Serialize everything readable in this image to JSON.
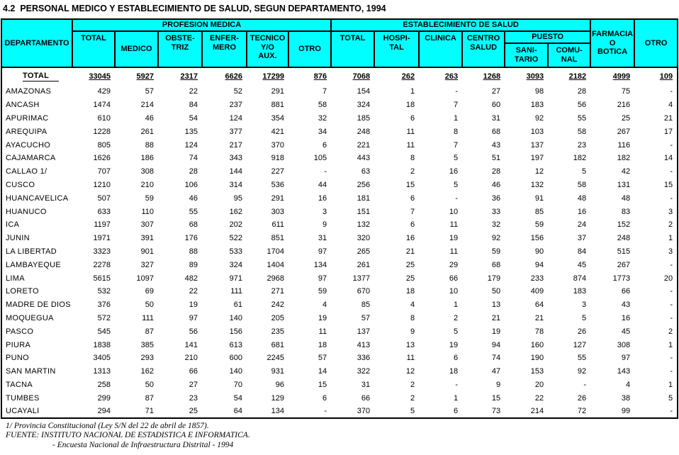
{
  "title": "4.2  PERSONAL MEDICO Y ESTABLECIMIENTO DE SALUD, SEGUN DEPARTAMENTO, 1994",
  "colors": {
    "header_bg": "#00ffff",
    "border": "#000000",
    "text": "#000000",
    "page_bg": "#ffffff"
  },
  "header": {
    "departamento": "DEPARTAMENTO",
    "groups": {
      "profesion": "PROFESION MEDICA",
      "establecimiento": "ESTABLECIMIENTO DE SALUD",
      "puesto": "PUESTO"
    },
    "prof_cols": [
      "TOTAL",
      "MEDICO",
      "OBSTE-\nTRIZ",
      "ENFER-\nMERO",
      "TECNICO\nY/O\nAUX.",
      "OTRO"
    ],
    "estab_cols": [
      "TOTAL",
      "HOSPI-\nTAL",
      "CLINICA",
      "CENTRO\nSALUD"
    ],
    "puesto_cols": [
      "SANI-\nTARIO",
      "COMU-\nNAL"
    ],
    "farmacia": "FARMACIA\nO\nBOTICA",
    "otro": "OTRO"
  },
  "table": {
    "total_row": {
      "label": "TOTAL",
      "values": [
        "33045",
        "5927",
        "2317",
        "6626",
        "17299",
        "876",
        "7068",
        "262",
        "263",
        "1268",
        "3093",
        "2182",
        "4999",
        "109"
      ]
    },
    "rows": [
      {
        "label": "AMAZONAS",
        "values": [
          "429",
          "57",
          "22",
          "52",
          "291",
          "7",
          "154",
          "1",
          "-",
          "27",
          "98",
          "28",
          "75",
          "-"
        ]
      },
      {
        "label": "ANCASH",
        "values": [
          "1474",
          "214",
          "84",
          "237",
          "881",
          "58",
          "324",
          "18",
          "7",
          "60",
          "183",
          "56",
          "216",
          "4"
        ]
      },
      {
        "label": "APURIMAC",
        "values": [
          "610",
          "46",
          "54",
          "124",
          "354",
          "32",
          "185",
          "6",
          "1",
          "31",
          "92",
          "55",
          "25",
          "21"
        ]
      },
      {
        "label": "AREQUIPA",
        "values": [
          "1228",
          "261",
          "135",
          "377",
          "421",
          "34",
          "248",
          "11",
          "8",
          "68",
          "103",
          "58",
          "267",
          "17"
        ]
      },
      {
        "label": "AYACUCHO",
        "values": [
          "805",
          "88",
          "124",
          "217",
          "370",
          "6",
          "221",
          "11",
          "7",
          "43",
          "137",
          "23",
          "116",
          "-"
        ]
      },
      {
        "label": "CAJAMARCA",
        "values": [
          "1626",
          "186",
          "74",
          "343",
          "918",
          "105",
          "443",
          "8",
          "5",
          "51",
          "197",
          "182",
          "182",
          "14"
        ]
      },
      {
        "label": "CALLAO 1/",
        "values": [
          "707",
          "308",
          "28",
          "144",
          "227",
          "-",
          "63",
          "2",
          "16",
          "28",
          "12",
          "5",
          "42",
          "-"
        ]
      },
      {
        "label": "CUSCO",
        "values": [
          "1210",
          "210",
          "106",
          "314",
          "536",
          "44",
          "256",
          "15",
          "5",
          "46",
          "132",
          "58",
          "131",
          "15"
        ]
      },
      {
        "label": "HUANCAVELICA",
        "values": [
          "507",
          "59",
          "46",
          "95",
          "291",
          "16",
          "181",
          "6",
          "-",
          "36",
          "91",
          "48",
          "48",
          "-"
        ]
      },
      {
        "label": "HUANUCO",
        "values": [
          "633",
          "110",
          "55",
          "162",
          "303",
          "3",
          "151",
          "7",
          "10",
          "33",
          "85",
          "16",
          "83",
          "3"
        ]
      },
      {
        "label": "ICA",
        "values": [
          "1197",
          "307",
          "68",
          "202",
          "611",
          "9",
          "132",
          "6",
          "11",
          "32",
          "59",
          "24",
          "152",
          "2"
        ]
      },
      {
        "label": "JUNIN",
        "values": [
          "1971",
          "391",
          "176",
          "522",
          "851",
          "31",
          "320",
          "16",
          "19",
          "92",
          "156",
          "37",
          "248",
          "1"
        ]
      },
      {
        "label": "LA LIBERTAD",
        "values": [
          "3323",
          "901",
          "88",
          "533",
          "1704",
          "97",
          "265",
          "21",
          "11",
          "59",
          "90",
          "84",
          "515",
          "3"
        ]
      },
      {
        "label": "LAMBAYEQUE",
        "values": [
          "2278",
          "327",
          "89",
          "324",
          "1404",
          "134",
          "261",
          "25",
          "29",
          "68",
          "94",
          "45",
          "267",
          "-"
        ]
      },
      {
        "label": "LIMA",
        "values": [
          "5615",
          "1097",
          "482",
          "971",
          "2968",
          "97",
          "1377",
          "25",
          "66",
          "179",
          "233",
          "874",
          "1773",
          "20"
        ]
      },
      {
        "label": "LORETO",
        "values": [
          "532",
          "69",
          "22",
          "111",
          "271",
          "59",
          "670",
          "18",
          "10",
          "50",
          "409",
          "183",
          "66",
          "-"
        ]
      },
      {
        "label": "MADRE DE DIOS",
        "values": [
          "376",
          "50",
          "19",
          "61",
          "242",
          "4",
          "85",
          "4",
          "1",
          "13",
          "64",
          "3",
          "43",
          "-"
        ]
      },
      {
        "label": "MOQUEGUA",
        "values": [
          "572",
          "111",
          "97",
          "140",
          "205",
          "19",
          "57",
          "8",
          "2",
          "21",
          "21",
          "5",
          "16",
          "-"
        ]
      },
      {
        "label": "PASCO",
        "values": [
          "545",
          "87",
          "56",
          "156",
          "235",
          "11",
          "137",
          "9",
          "5",
          "19",
          "78",
          "26",
          "45",
          "2"
        ]
      },
      {
        "label": "PIURA",
        "values": [
          "1838",
          "385",
          "141",
          "613",
          "681",
          "18",
          "413",
          "13",
          "19",
          "94",
          "160",
          "127",
          "308",
          "1"
        ]
      },
      {
        "label": "PUNO",
        "values": [
          "3405",
          "293",
          "210",
          "600",
          "2245",
          "57",
          "336",
          "11",
          "6",
          "74",
          "190",
          "55",
          "97",
          "-"
        ]
      },
      {
        "label": "SAN MARTIN",
        "values": [
          "1313",
          "162",
          "66",
          "140",
          "931",
          "14",
          "322",
          "12",
          "18",
          "47",
          "153",
          "92",
          "143",
          "-"
        ]
      },
      {
        "label": "TACNA",
        "values": [
          "258",
          "50",
          "27",
          "70",
          "96",
          "15",
          "31",
          "2",
          "-",
          "9",
          "20",
          "-",
          "4",
          "1"
        ]
      },
      {
        "label": "TUMBES",
        "values": [
          "299",
          "87",
          "23",
          "54",
          "129",
          "6",
          "66",
          "2",
          "1",
          "15",
          "22",
          "26",
          "38",
          "5"
        ]
      },
      {
        "label": "UCAYALI",
        "values": [
          "294",
          "71",
          "25",
          "64",
          "134",
          "-",
          "370",
          "5",
          "6",
          "73",
          "214",
          "72",
          "99",
          "-"
        ]
      }
    ]
  },
  "footnotes": [
    "1/ Provincia Constitucional (Ley S/N del 22 de abril de 1857).",
    "FUENTE: INSTITUTO NACIONAL DE ESTADISTICA E INFORMATICA.",
    "- Encuesta Nacional de Infraestructura Distrital - 1994"
  ]
}
